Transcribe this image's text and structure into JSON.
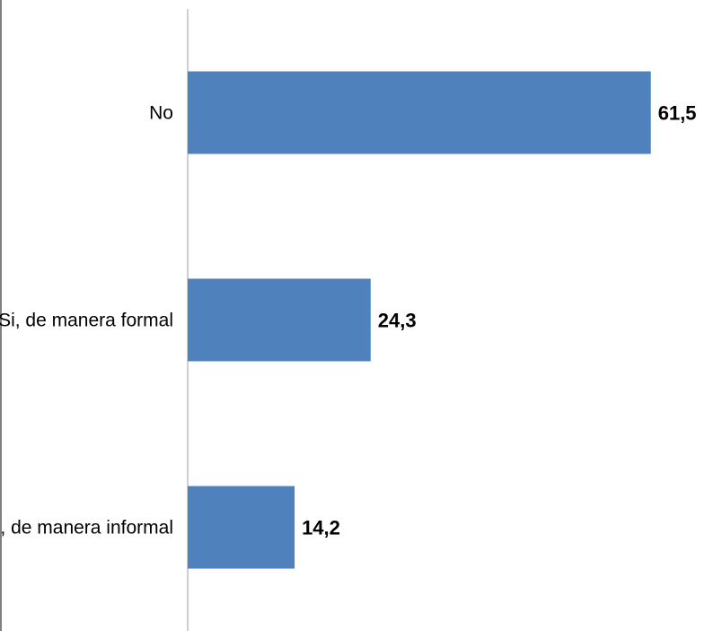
{
  "chart_data": {
    "type": "bar",
    "orientation": "horizontal",
    "categories": [
      "No",
      "Si, de manera formal",
      "Si, de manera informal"
    ],
    "values": [
      61.5,
      24.3,
      14.2
    ],
    "value_labels": [
      "61,5",
      "24,3",
      "14,2"
    ],
    "title": "",
    "xlabel": "",
    "ylabel": "",
    "xlim": [
      0,
      70
    ],
    "grid": false,
    "legend": "none",
    "colors": {
      "bar": "#4F81BD",
      "axis": "#BFBFBF",
      "frame": "#808080"
    }
  }
}
